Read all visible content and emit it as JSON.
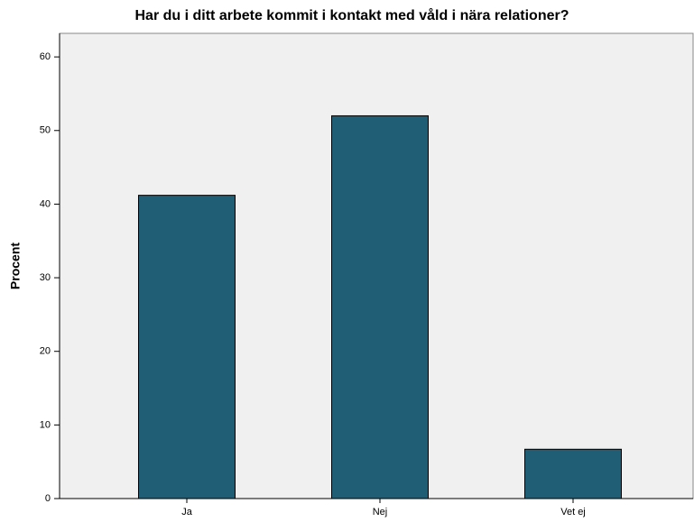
{
  "chart_data": {
    "type": "bar",
    "title": "Har du i ditt arbete kommit i kontakt med våld i nära relationer?",
    "ylabel": "Procent",
    "categories": [
      "Ja",
      "Nej",
      "Vet ej"
    ],
    "values": [
      41.2,
      52.0,
      6.7
    ],
    "color": "#1f5e75",
    "ylim": [
      0,
      63.2
    ],
    "yticks": [
      0,
      10,
      20,
      30,
      40,
      50,
      60
    ],
    "grid": false
  }
}
